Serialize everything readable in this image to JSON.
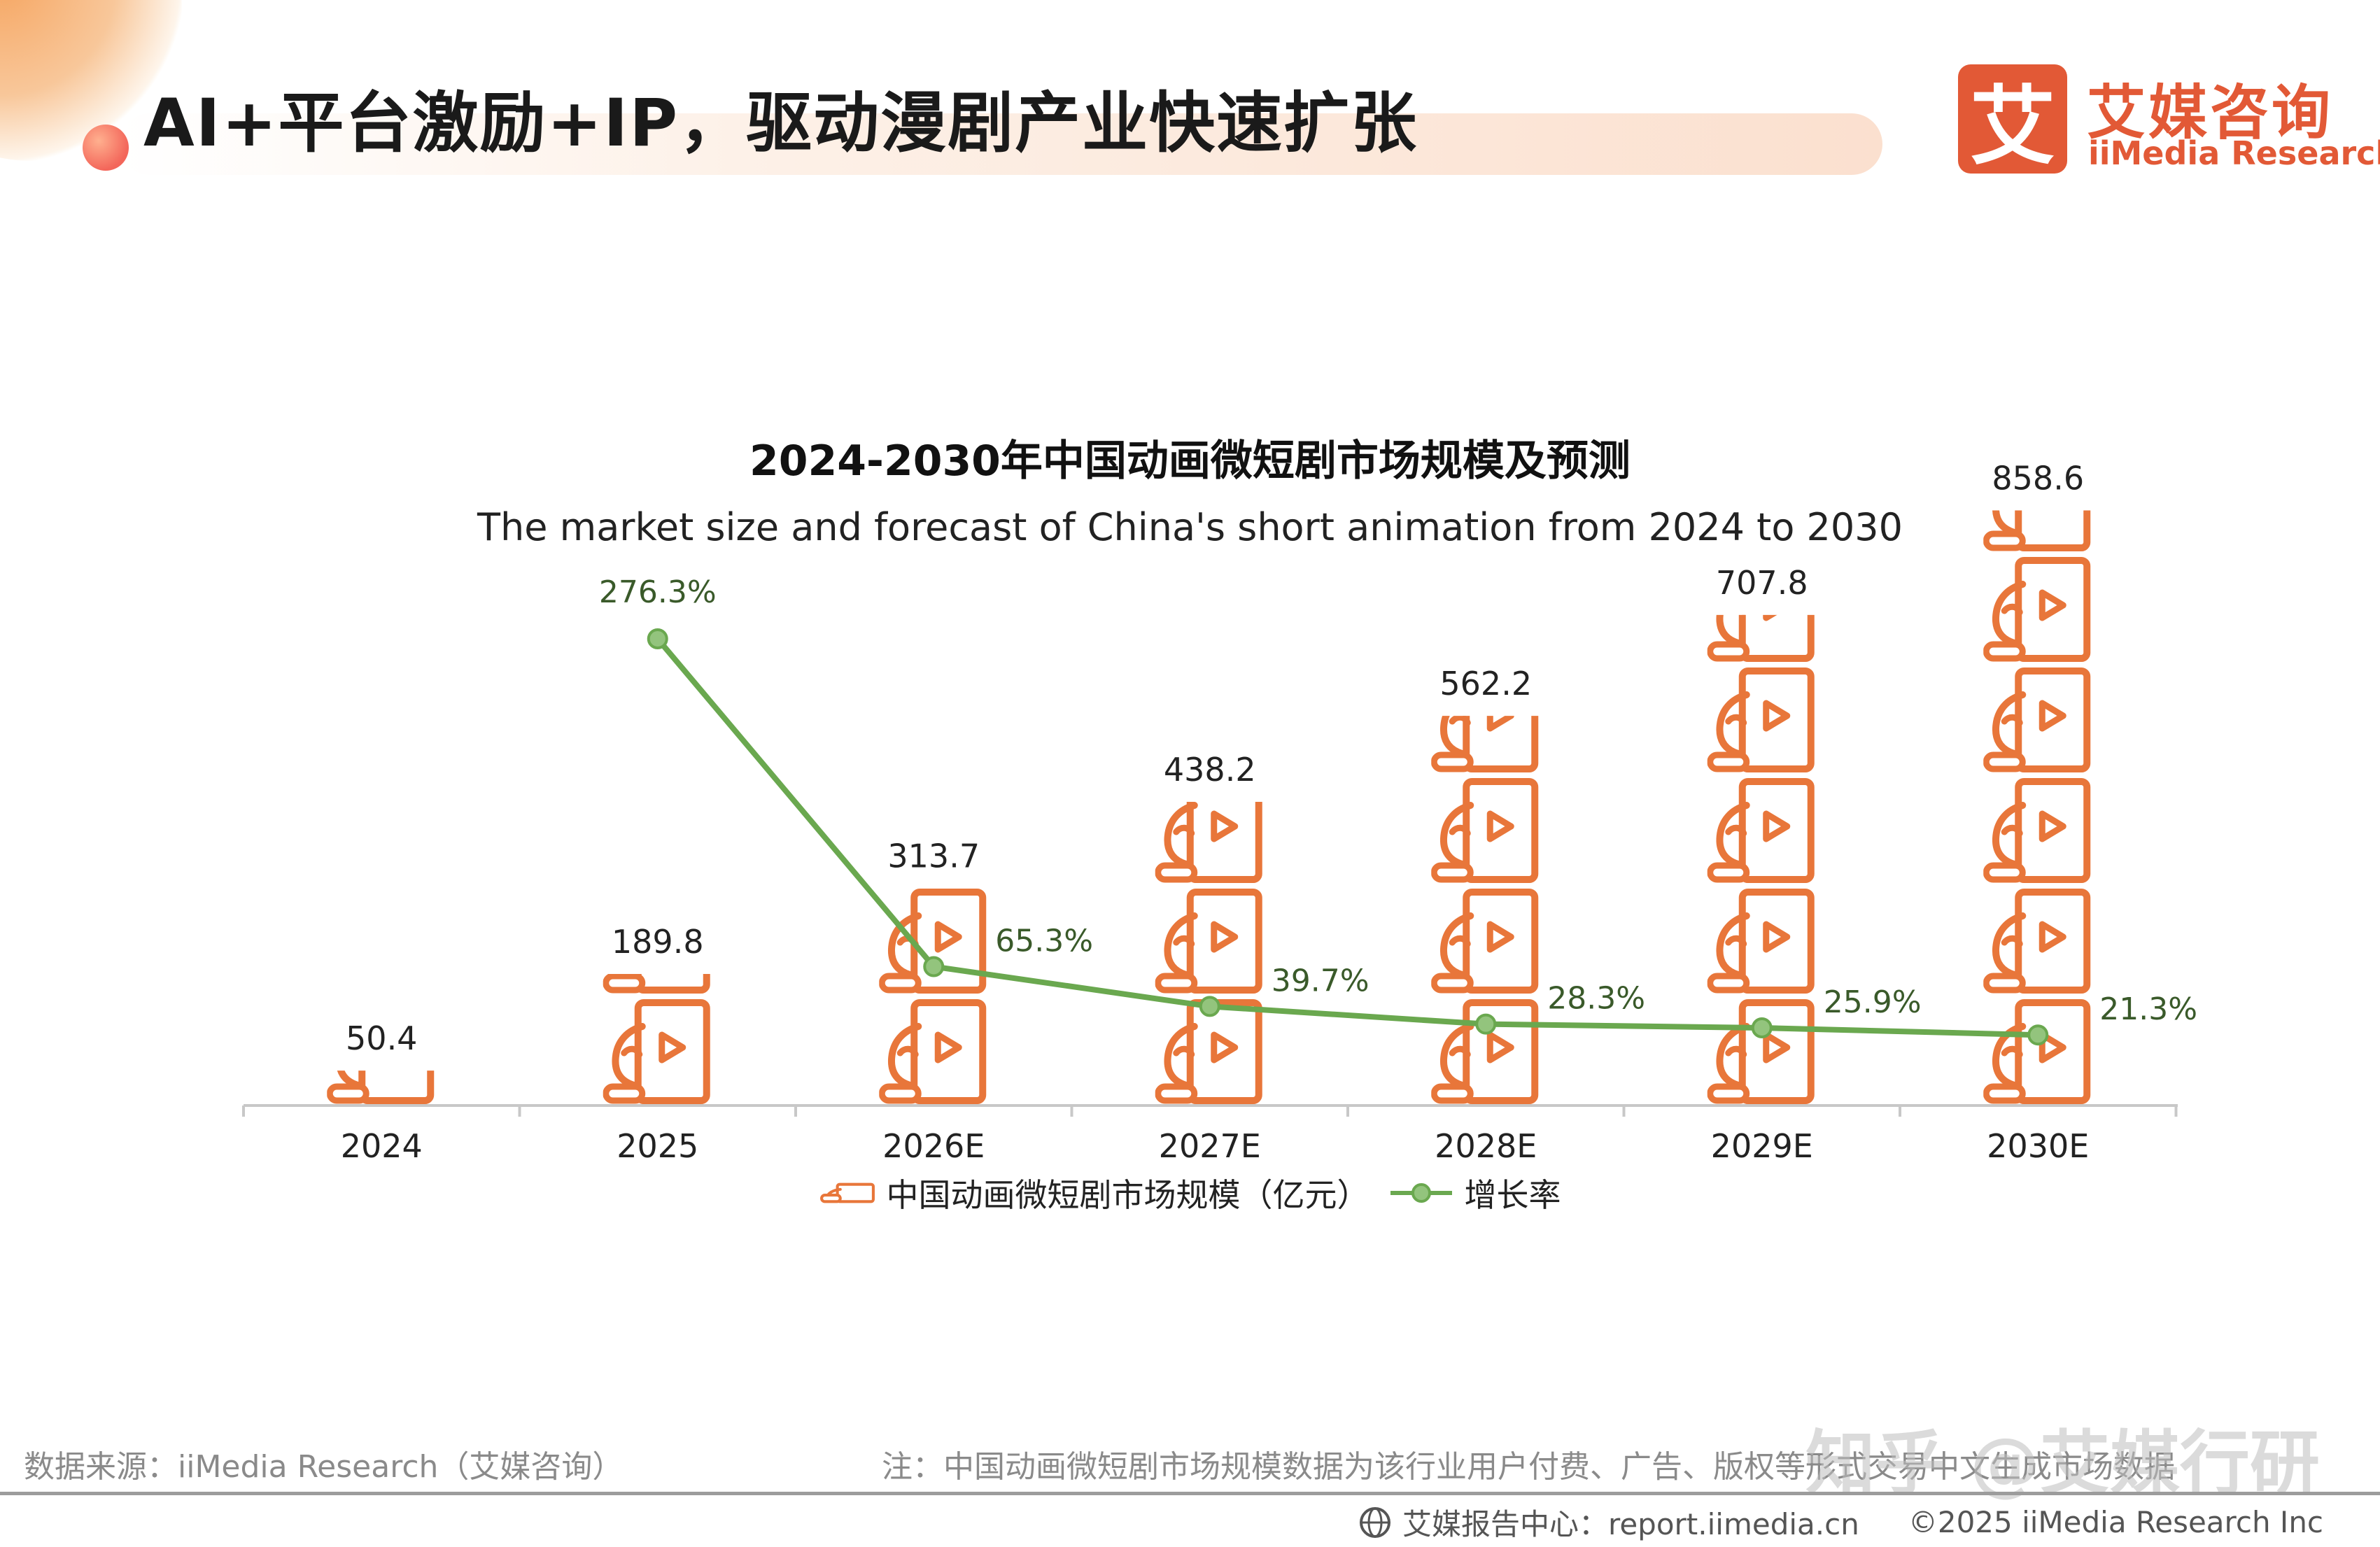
{
  "header": {
    "title": "AI+平台激励+IP，驱动漫剧产业快速扩张",
    "logo_mark": "艾",
    "logo_cn": "艾媒咨询",
    "logo_en": "iiMedia Research"
  },
  "colors": {
    "bar": "#e8763a",
    "line": "#6aa84f",
    "line_marker_fill": "#93c47d",
    "brand": "#e25936"
  },
  "chart_data": {
    "type": "bar",
    "title": "2024-2030年中国动画微短剧市场规模及预测",
    "subtitle": "The market size and forecast of China's short animation from 2024 to 2030",
    "categories": [
      "2024",
      "2025",
      "2026E",
      "2027E",
      "2028E",
      "2029E",
      "2030E"
    ],
    "series": [
      {
        "name": "中国动画微短剧市场规模（亿元）",
        "type": "bar",
        "values": [
          50.4,
          189.8,
          313.7,
          438.2,
          562.2,
          707.8,
          858.6
        ],
        "labels": [
          "50.4",
          "189.8",
          "313.7",
          "438.2",
          "562.2",
          "707.8",
          "858.6"
        ]
      },
      {
        "name": "增长率",
        "type": "line",
        "values": [
          null,
          276.3,
          65.3,
          39.7,
          28.3,
          25.9,
          21.3
        ],
        "labels": [
          "",
          "276.3%",
          "65.3%",
          "39.7%",
          "28.3%",
          "25.9%",
          "21.3%"
        ]
      }
    ],
    "bar_ylim": [
      0,
      900
    ],
    "line_ylim": [
      0,
      290
    ],
    "legend_position": "bottom",
    "grid": false
  },
  "footer": {
    "source": "数据来源：iiMedia Research（艾媒咨询）",
    "note": "注：中国动画微短剧市场规模数据为该行业用户付费、广告、版权等形式交易中文生成市场数据",
    "watermark": "知乎 @艾媒行研",
    "site": "艾媒报告中心：report.iimedia.cn",
    "copyright": "©2025  iiMedia Research  Inc"
  }
}
